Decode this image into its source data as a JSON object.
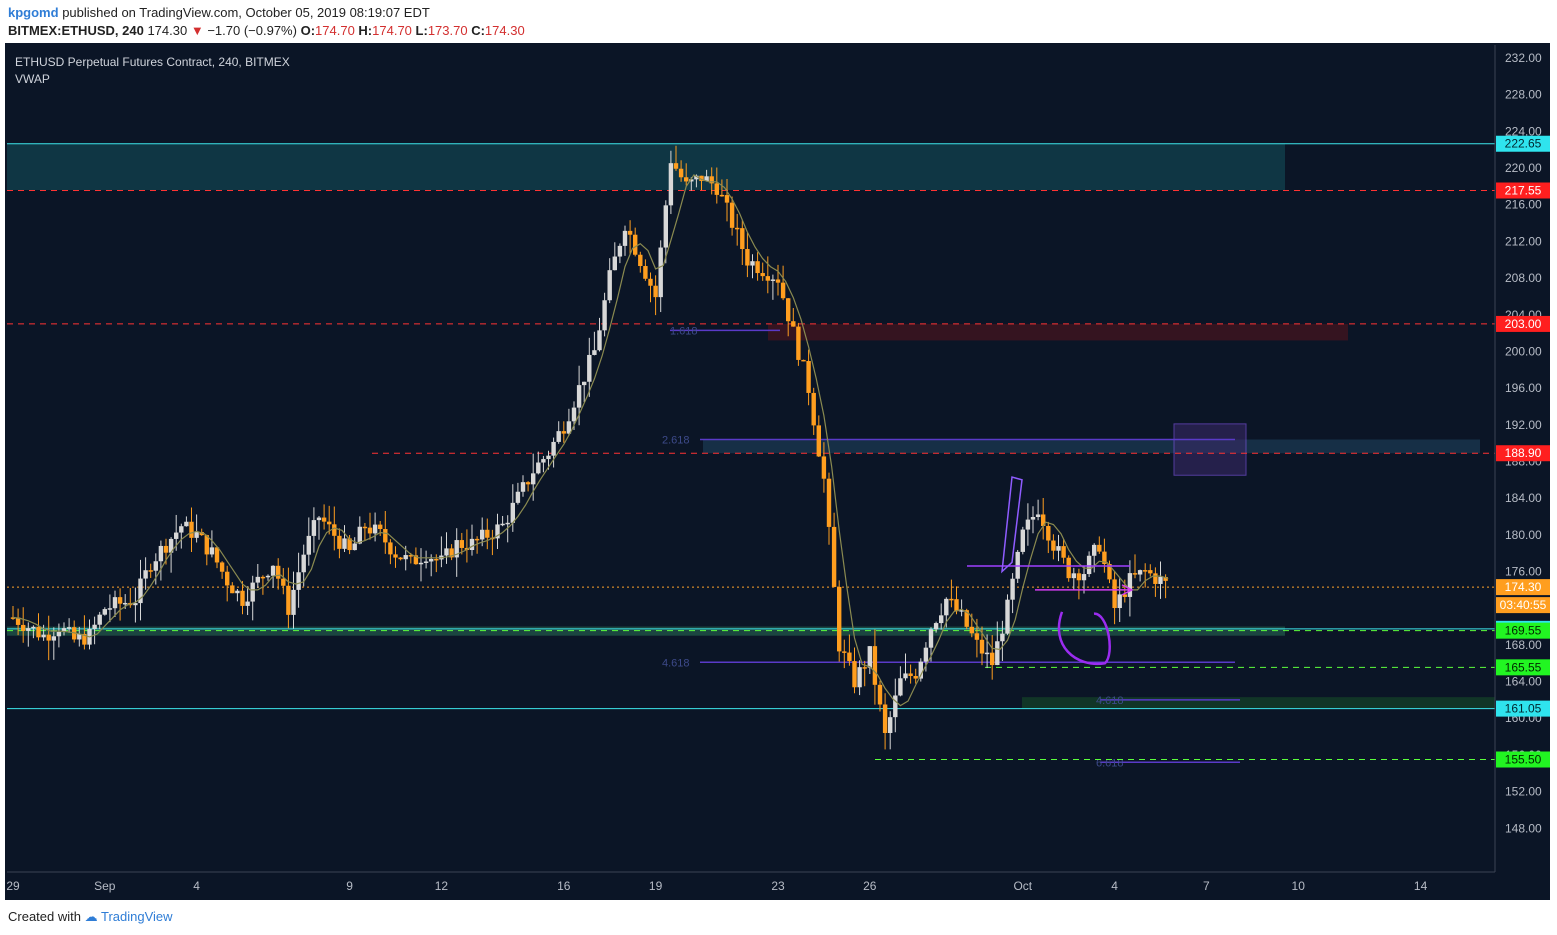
{
  "header": {
    "author": "kpgomd",
    "published_text": "published on TradingView.com, October 05, 2019 08:19:07 EDT",
    "symbol": "BITMEX:ETHUSD, 240",
    "last": "174.30",
    "change": "−1.70 (−0.97%)",
    "open_label": "O:",
    "open": "174.70",
    "high_label": "H:",
    "high": "174.70",
    "low_label": "L:",
    "low": "173.70",
    "close_label": "C:",
    "close": "174.30"
  },
  "legend": {
    "title": "ETHUSD Perpetual Futures Contract, 240, BITMEX",
    "indicator": "VWAP"
  },
  "footer": {
    "created_with": "Created with",
    "brand": "TradingView"
  },
  "colors": {
    "background": "#0b1526",
    "up_candle": "#d8d8d8",
    "down_candle": "#ff9e1f",
    "support_cyan": "#26e0e8",
    "resistance_red": "#ff2b2b",
    "target_green": "#33ff33",
    "annotation_purple": "#a040ff"
  },
  "chart_data": {
    "type": "candlestick",
    "title": "ETHUSD Perpetual Futures Contract, 240, BITMEX",
    "ylim": [
      145,
      233
    ],
    "y_ticks": [
      "232.00",
      "228.00",
      "224.00",
      "220.00",
      "216.00",
      "212.00",
      "208.00",
      "204.00",
      "200.00",
      "196.00",
      "192.00",
      "188.00",
      "184.00",
      "180.00",
      "176.00",
      "172.00",
      "168.00",
      "164.00",
      "160.00",
      "156.00",
      "152.00",
      "148.00"
    ],
    "x_ticks": [
      {
        "label": "29",
        "day": 0
      },
      {
        "label": "Sep",
        "day": 3
      },
      {
        "label": "4",
        "day": 6
      },
      {
        "label": "9",
        "day": 11
      },
      {
        "label": "12",
        "day": 14
      },
      {
        "label": "16",
        "day": 18
      },
      {
        "label": "19",
        "day": 21
      },
      {
        "label": "23",
        "day": 25
      },
      {
        "label": "26",
        "day": 28
      },
      {
        "label": "Oct",
        "day": 33
      },
      {
        "label": "4",
        "day": 36
      },
      {
        "label": "7",
        "day": 39
      },
      {
        "label": "10",
        "day": 42
      },
      {
        "label": "14",
        "day": 46
      }
    ],
    "price_levels": [
      {
        "value": 222.65,
        "label": "222.65",
        "kind": "cyan"
      },
      {
        "value": 217.55,
        "label": "217.55",
        "kind": "red"
      },
      {
        "value": 203.0,
        "label": "203.00",
        "kind": "red"
      },
      {
        "value": 188.9,
        "label": "188.90",
        "kind": "red"
      },
      {
        "value": 174.3,
        "label": "174.30",
        "kind": "last"
      },
      {
        "value": 169.75,
        "label": "169.75",
        "kind": "cyan"
      },
      {
        "value": 169.55,
        "label": "169.55",
        "kind": "green"
      },
      {
        "value": 165.55,
        "label": "165.55",
        "kind": "green"
      },
      {
        "value": 161.05,
        "label": "161.05",
        "kind": "cyan"
      },
      {
        "value": 155.5,
        "label": "155.50",
        "kind": "green"
      }
    ],
    "countdown": "03:40:55",
    "fib_labels": [
      "1.618",
      "2.618",
      "4.618",
      "4.618",
      "6.618"
    ],
    "close_path": [
      [
        0,
        171
      ],
      [
        0.5,
        170
      ],
      [
        1,
        169
      ],
      [
        1.5,
        170
      ],
      [
        2,
        168.5
      ],
      [
        2.5,
        169
      ],
      [
        3,
        172
      ],
      [
        3.5,
        172.5
      ],
      [
        4,
        173
      ],
      [
        4.5,
        177
      ],
      [
        5,
        179
      ],
      [
        5.5,
        181
      ],
      [
        6,
        180
      ],
      [
        6.5,
        178
      ],
      [
        7,
        175
      ],
      [
        7.5,
        173
      ],
      [
        8,
        175
      ],
      [
        8.5,
        177
      ],
      [
        9,
        172
      ],
      [
        9.5,
        178
      ],
      [
        10,
        182
      ],
      [
        10.5,
        180
      ],
      [
        11,
        178
      ],
      [
        11.5,
        181
      ],
      [
        12,
        180
      ],
      [
        12.5,
        178
      ],
      [
        13,
        177
      ],
      [
        13.5,
        178
      ],
      [
        14,
        177
      ],
      [
        14.5,
        179
      ],
      [
        15,
        179
      ],
      [
        15.5,
        180
      ],
      [
        16,
        181
      ],
      [
        16.5,
        184
      ],
      [
        17,
        187
      ],
      [
        17.5,
        189
      ],
      [
        18,
        192
      ],
      [
        18.5,
        196
      ],
      [
        19,
        200
      ],
      [
        19.5,
        208
      ],
      [
        20,
        214
      ],
      [
        20.5,
        210
      ],
      [
        21,
        206
      ],
      [
        21.5,
        221
      ],
      [
        22,
        218
      ],
      [
        22.5,
        219
      ],
      [
        23,
        218
      ],
      [
        23.5,
        214
      ],
      [
        24,
        210
      ],
      [
        24.5,
        209
      ],
      [
        25,
        208
      ],
      [
        25.5,
        202
      ],
      [
        26,
        196
      ],
      [
        26.5,
        186
      ],
      [
        27,
        168
      ],
      [
        27.5,
        164
      ],
      [
        28,
        167
      ],
      [
        28.5,
        158
      ],
      [
        29,
        164
      ],
      [
        29.5,
        165
      ],
      [
        30,
        170
      ],
      [
        30.5,
        173
      ],
      [
        31,
        171
      ],
      [
        31.5,
        168
      ],
      [
        32,
        166
      ],
      [
        32.5,
        172
      ],
      [
        33,
        180
      ],
      [
        33.5,
        183
      ],
      [
        34,
        179
      ],
      [
        34.5,
        176
      ],
      [
        35,
        176
      ],
      [
        35.5,
        179
      ],
      [
        36,
        172
      ],
      [
        36.5,
        175
      ],
      [
        37,
        176
      ],
      [
        37.5,
        175
      ],
      [
        37.8,
        174.3
      ]
    ]
  }
}
